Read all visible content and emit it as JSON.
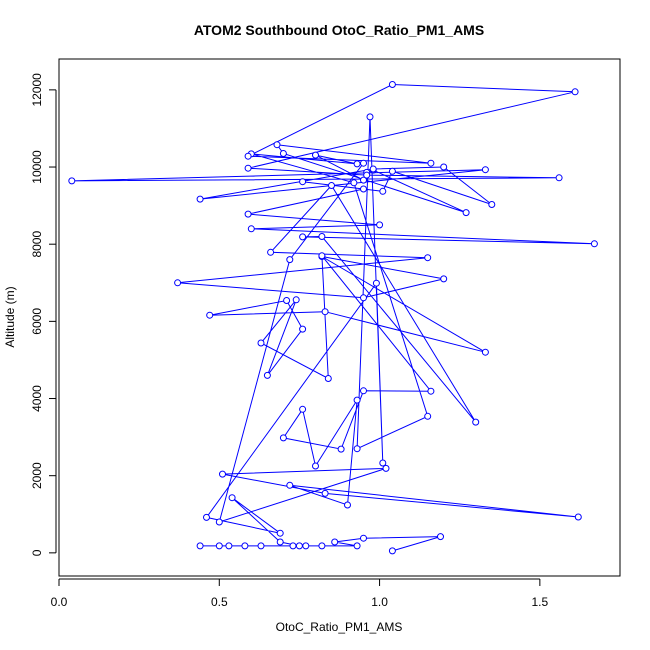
{
  "chart_data": {
    "type": "line",
    "title": "ATOM2 Southbound OtoC_Ratio_PM1_AMS",
    "xlabel": "OtoC_Ratio_PM1_AMS",
    "ylabel": "Altitude (m)",
    "xlim": [
      0.0,
      1.75
    ],
    "ylim": [
      -600,
      12800
    ],
    "x_ticks": [
      0.0,
      0.5,
      1.0,
      1.5
    ],
    "x_tick_labels": [
      "0.0",
      "0.5",
      "1.0",
      "1.5"
    ],
    "y_ticks": [
      0,
      2000,
      4000,
      6000,
      8000,
      10000,
      12000
    ],
    "y_tick_labels": [
      "0",
      "2000",
      "4000",
      "6000",
      "8000",
      "10000",
      "12000"
    ],
    "grid": false,
    "series": [
      {
        "color": "#0000ff",
        "marker": "open-circle",
        "points": [
          [
            1.04,
            50
          ],
          [
            1.19,
            420
          ],
          [
            0.95,
            380
          ],
          [
            0.86,
            280
          ],
          [
            0.93,
            180
          ],
          [
            0.82,
            180
          ],
          [
            0.77,
            180
          ],
          [
            0.73,
            180
          ],
          [
            0.63,
            180
          ],
          [
            0.58,
            180
          ],
          [
            0.53,
            180
          ],
          [
            0.5,
            180
          ],
          [
            0.44,
            180
          ],
          [
            0.75,
            180
          ],
          [
            0.69,
            280
          ],
          [
            0.54,
            1430
          ],
          [
            0.69,
            510
          ],
          [
            0.46,
            920
          ],
          [
            0.99,
            6990
          ],
          [
            1.01,
            2330
          ],
          [
            0.97,
            11300
          ],
          [
            0.93,
            2700
          ],
          [
            1.15,
            3540
          ],
          [
            0.92,
            9590
          ],
          [
            0.6,
            10340
          ],
          [
            0.93,
            10080
          ],
          [
            0.8,
            10310
          ],
          [
            0.95,
            9660
          ],
          [
            0.96,
            9860
          ],
          [
            0.98,
            9920
          ],
          [
            1.27,
            8820
          ],
          [
            0.7,
            10350
          ],
          [
            0.68,
            10580
          ],
          [
            1.16,
            10100
          ],
          [
            0.59,
            10280
          ],
          [
            1.04,
            12140
          ],
          [
            1.61,
            11950
          ],
          [
            0.59,
            9970
          ],
          [
            0.96,
            9790
          ],
          [
            1.56,
            9720
          ],
          [
            0.04,
            9640
          ],
          [
            1.33,
            9930
          ],
          [
            0.44,
            9170
          ],
          [
            0.98,
            9950
          ],
          [
            1.2,
            10000
          ],
          [
            1.35,
            9030
          ],
          [
            1.04,
            9890
          ],
          [
            1.01,
            9370
          ],
          [
            0.76,
            9620
          ],
          [
            0.95,
            9430
          ],
          [
            0.59,
            8780
          ],
          [
            1.0,
            8500
          ],
          [
            0.6,
            8400
          ],
          [
            1.67,
            8010
          ],
          [
            0.76,
            8190
          ],
          [
            0.82,
            8200
          ],
          [
            1.3,
            3390
          ],
          [
            0.85,
            9520
          ],
          [
            0.66,
            7790
          ],
          [
            1.15,
            7650
          ],
          [
            0.37,
            7000
          ],
          [
            0.95,
            6610
          ],
          [
            1.2,
            7100
          ],
          [
            0.82,
            7680
          ],
          [
            1.33,
            5200
          ],
          [
            0.83,
            6250
          ],
          [
            0.47,
            6160
          ],
          [
            0.71,
            6540
          ],
          [
            0.76,
            5800
          ],
          [
            0.65,
            4600
          ],
          [
            0.74,
            6560
          ],
          [
            0.63,
            5440
          ],
          [
            0.84,
            4520
          ],
          [
            0.82,
            7700
          ],
          [
            1.16,
            4190
          ],
          [
            0.95,
            4200
          ],
          [
            0.88,
            2690
          ],
          [
            0.7,
            2980
          ],
          [
            0.76,
            3720
          ],
          [
            0.8,
            2250
          ],
          [
            0.93,
            3960
          ],
          [
            0.9,
            1240
          ],
          [
            0.72,
            1750
          ],
          [
            1.62,
            930
          ],
          [
            0.83,
            1540
          ],
          [
            0.51,
            2040
          ],
          [
            1.02,
            2190
          ],
          [
            0.5,
            800
          ],
          [
            0.72,
            7600
          ],
          [
            0.95,
            10100
          ]
        ]
      }
    ]
  }
}
